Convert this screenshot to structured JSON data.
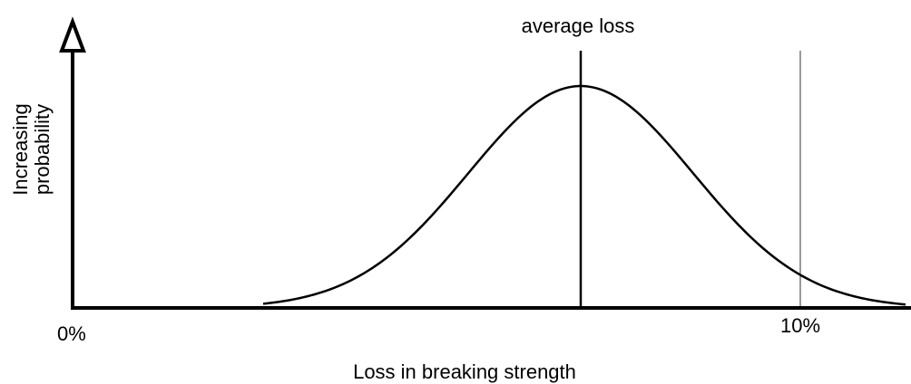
{
  "diagram": {
    "annotation": "average loss",
    "y_axis_label": [
      "Increasing",
      "probability"
    ],
    "x_axis_start": "0%",
    "x_axis_mark": "10%",
    "x_axis_label": "Loss in breaking strength"
  }
}
